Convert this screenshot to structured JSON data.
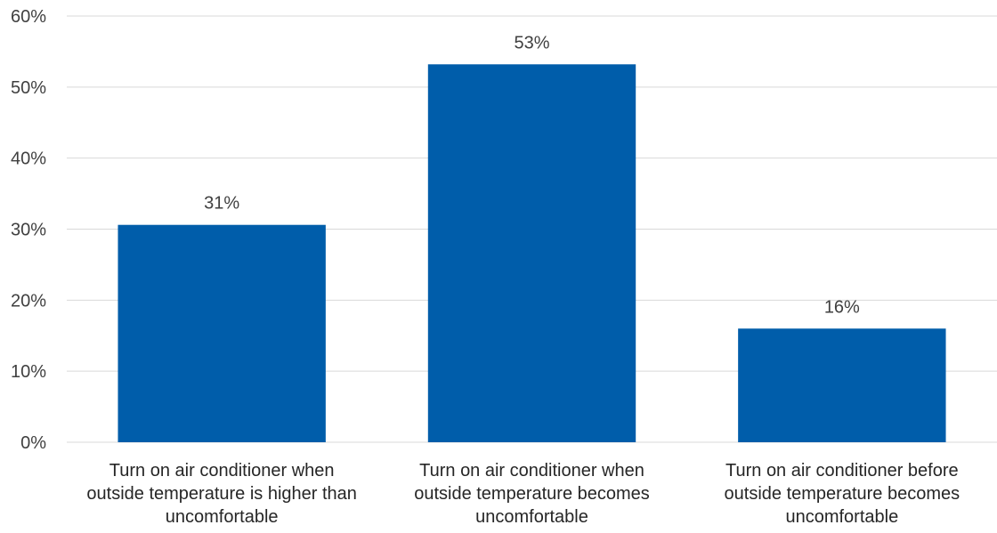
{
  "chart_data": {
    "type": "bar",
    "title": "",
    "xlabel": "",
    "ylabel": "",
    "ylim": [
      0,
      60
    ],
    "yticks": [
      "0%",
      "10%",
      "20%",
      "30%",
      "40%",
      "50%",
      "60%"
    ],
    "ytick_values": [
      0,
      10,
      20,
      30,
      40,
      50,
      60
    ],
    "grid": true,
    "legend": "none",
    "bar_color": "#005DAA",
    "categories": [
      [
        "Turn on air conditioner when",
        "outside temperature is higher than",
        "uncomfortable"
      ],
      [
        "Turn on air conditioner when",
        "outside temperature becomes",
        "uncomfortable"
      ],
      [
        "Turn on air conditioner before",
        "outside temperature becomes",
        "uncomfortable"
      ]
    ],
    "values": [
      30.6,
      53.2,
      16.0
    ],
    "data_labels": [
      "31%",
      "53%",
      "16%"
    ]
  }
}
